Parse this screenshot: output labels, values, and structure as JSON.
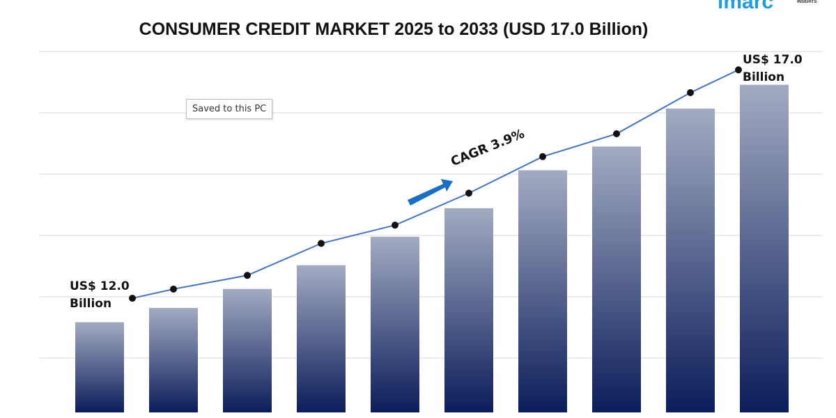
{
  "chart_data": {
    "type": "bar",
    "title": "CONSUMER CREDIT MARKET 2025 to 2033 (USD 17.0 Billion)",
    "categories": [
      null,
      null,
      null,
      null,
      null,
      null,
      null,
      null,
      null,
      null
    ],
    "series": [
      {
        "type": "bar",
        "color": [
          "#a3abc2",
          "#0b1d5a"
        ],
        "values": [
          12.0,
          12.3,
          12.7,
          13.2,
          13.8,
          14.4,
          15.2,
          15.7,
          16.5,
          17.0
        ]
      },
      {
        "type": "line",
        "axis": "y2",
        "color": "#4472c4",
        "values": [
          12.0,
          12.2,
          12.5,
          13.2,
          13.6,
          14.3,
          15.1,
          15.6,
          16.5,
          17.0
        ]
      }
    ],
    "ylim": [
      10.1,
      17.7
    ],
    "y2lim": [
      9.5,
      17.4
    ],
    "annotations": [
      "US$ 12.0 Billion",
      "US$ 17.0 Billion",
      "CAGR 3.9%"
    ]
  },
  "tooltip": "Saved to this PC",
  "logo": {
    "name": "imarc",
    "tagline": "INSIGHTS"
  }
}
